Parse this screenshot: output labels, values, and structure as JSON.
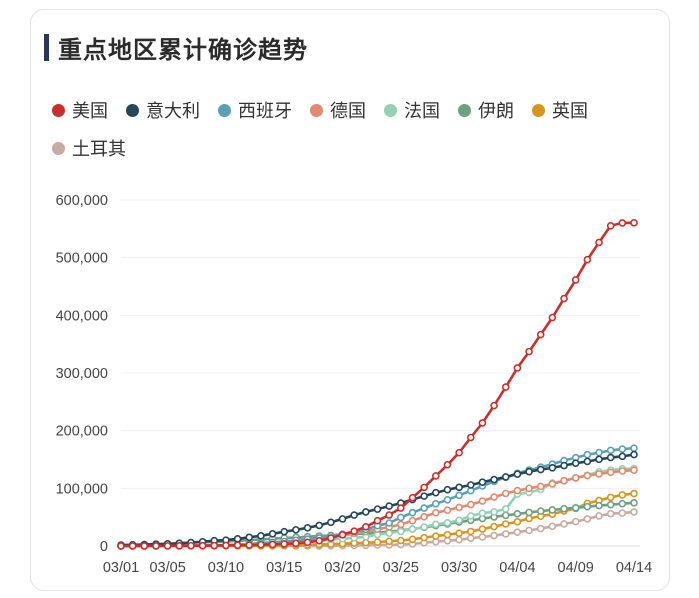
{
  "title": "重点地区累计确诊趋势",
  "chart_data": {
    "type": "line",
    "title": "重点地区累计确诊趋势",
    "legend_position": "top-left",
    "grid": true,
    "ylim": [
      0,
      600000
    ],
    "y_ticks": [
      "0",
      "100,000",
      "200,000",
      "300,000",
      "400,000",
      "500,000",
      "600,000"
    ],
    "x_ticks": [
      "03/01",
      "03/05",
      "03/10",
      "03/15",
      "03/20",
      "03/25",
      "03/30",
      "04/04",
      "04/09",
      "04/14"
    ],
    "x_start": "03/01",
    "x_end": "04/14",
    "series": [
      {
        "name": "美国",
        "color": "#c9302c",
        "values": [
          75,
          100,
          124,
          158,
          221,
          319,
          435,
          541,
          704,
          994,
          1301,
          1630,
          2183,
          2770,
          3613,
          4596,
          6344,
          9197,
          13779,
          19367,
          25600,
          33276,
          43843,
          53740,
          65778,
          83836,
          101657,
          121478,
          140886,
          161807,
          188172,
          213372,
          243453,
          275586,
          308850,
          337072,
          366667,
          396223,
          429052,
          461437,
          496535,
          526396,
          555313,
          560300,
          560433
        ]
      },
      {
        "name": "意大利",
        "color": "#26465a",
        "values": [
          1694,
          2036,
          2502,
          3089,
          3858,
          4636,
          5883,
          7375,
          9172,
          10149,
          12462,
          15113,
          17660,
          21157,
          24747,
          27980,
          31506,
          35713,
          41035,
          47021,
          53578,
          59138,
          63927,
          69176,
          74386,
          80589,
          86498,
          92472,
          97689,
          101739,
          105792,
          110574,
          115242,
          119827,
          124632,
          128948,
          132547,
          135586,
          139422,
          143626,
          146577,
          150271,
          153363,
          155516,
          158488
        ]
      },
      {
        "name": "西班牙",
        "color": "#5aa0b4",
        "values": [
          84,
          120,
          165,
          222,
          259,
          400,
          500,
          673,
          1073,
          1695,
          2277,
          3146,
          5232,
          6391,
          7798,
          9942,
          11748,
          13910,
          17963,
          20410,
          25374,
          28603,
          35136,
          39885,
          49515,
          57786,
          65719,
          73235,
          80110,
          87956,
          95923,
          104118,
          112065,
          119199,
          126168,
          131646,
          136675,
          141942,
          148220,
          153222,
          158273,
          162027,
          165831,
          168099,
          169541
        ]
      },
      {
        "name": "德国",
        "color": "#e08a6e",
        "values": [
          130,
          159,
          196,
          262,
          482,
          670,
          799,
          1040,
          1176,
          1457,
          1908,
          2078,
          3675,
          4585,
          5795,
          7272,
          9257,
          12327,
          15320,
          19848,
          22213,
          24873,
          29056,
          32986,
          37323,
          43938,
          50871,
          57695,
          62095,
          66885,
          71808,
          77872,
          84794,
          91159,
          96092,
          100123,
          103374,
          107663,
          113296,
          118181,
          122171,
          124908,
          127854,
          130072,
          131359
        ]
      },
      {
        "name": "法国",
        "color": "#94cfb6",
        "values": [
          130,
          191,
          204,
          288,
          380,
          656,
          957,
          1134,
          1217,
          1792,
          2289,
          2289,
          3672,
          4480,
          4513,
          6650,
          7652,
          9043,
          10871,
          12612,
          14282,
          16018,
          19856,
          22304,
          25233,
          29155,
          32964,
          37575,
          40174,
          44550,
          52128,
          56989,
          59105,
          64338,
          89953,
          92839,
          98010,
          109069,
          112950,
          117749,
          122869,
          128730,
          131470,
          133779,
          134303
        ]
      },
      {
        "name": "伊朗",
        "color": "#6f9f84",
        "values": [
          978,
          1501,
          2336,
          2922,
          3513,
          4747,
          5823,
          6566,
          7161,
          8042,
          9000,
          10075,
          11364,
          12729,
          13938,
          14991,
          16169,
          17361,
          18407,
          19644,
          20610,
          21638,
          23049,
          24811,
          27017,
          29406,
          32332,
          35408,
          38309,
          41495,
          44605,
          47593,
          50468,
          53183,
          55743,
          58226,
          60500,
          62589,
          64586,
          66220,
          68192,
          70029,
          71686,
          73303,
          74877
        ]
      },
      {
        "name": "英国",
        "color": "#d4961f",
        "values": [
          36,
          40,
          51,
          85,
          115,
          163,
          206,
          273,
          321,
          373,
          456,
          590,
          797,
          1061,
          1391,
          1543,
          1950,
          2626,
          3269,
          3983,
          5018,
          5683,
          6650,
          8077,
          9529,
          11658,
          14543,
          17089,
          19522,
          22141,
          25150,
          29474,
          33718,
          38168,
          41903,
          47806,
          51608,
          55242,
          60733,
          65077,
          73758,
          78991,
          84279,
          88621,
          90873
        ]
      },
      {
        "name": "土耳其",
        "color": "#c8aaa0",
        "values": [
          0,
          0,
          0,
          0,
          0,
          0,
          0,
          0,
          0,
          0,
          1,
          1,
          5,
          6,
          18,
          47,
          98,
          191,
          359,
          670,
          947,
          1236,
          1529,
          1872,
          2433,
          3629,
          5698,
          7402,
          9217,
          10827,
          13531,
          15679,
          18135,
          20921,
          23934,
          27069,
          30217,
          34109,
          38226,
          42282,
          47029,
          52167,
          55956,
          57049,
          59111
        ]
      }
    ]
  }
}
